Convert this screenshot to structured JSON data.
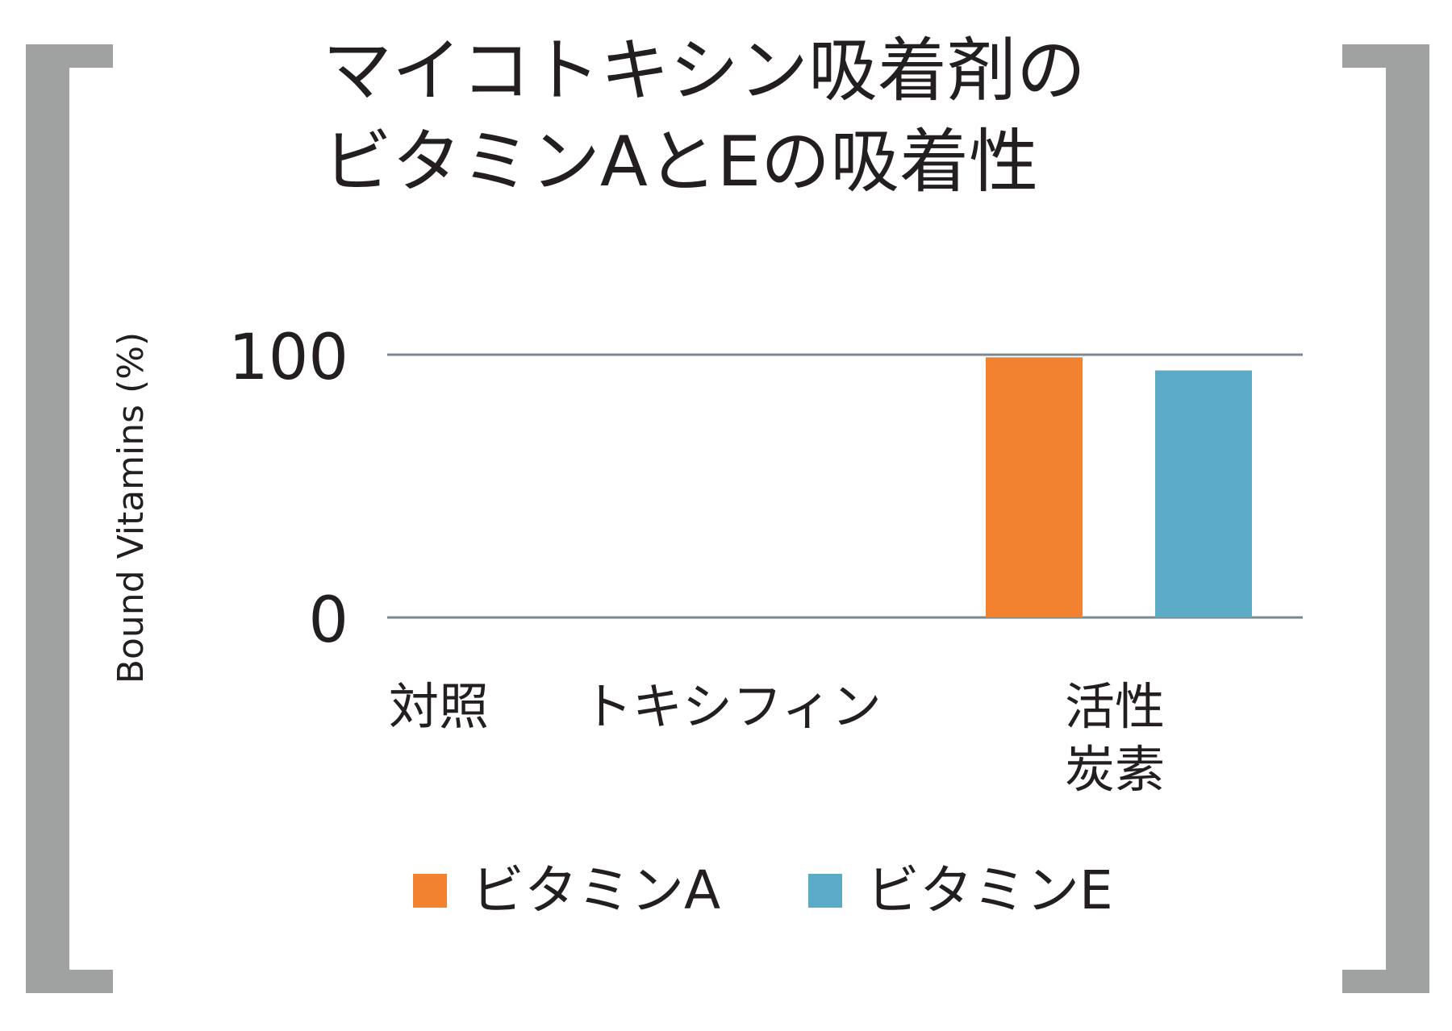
{
  "chart_data": {
    "type": "bar",
    "title_lines": [
      "マイコトキシン吸着剤の",
      "ビタミンAとEの吸着性"
    ],
    "ylabel": "Bound Vitamins (%)",
    "ylim": [
      0,
      100
    ],
    "yticks": [
      "0",
      "100"
    ],
    "grid": true,
    "legend_position": "bottom",
    "categories": [
      "対照",
      "トキシフィン",
      "活性\n炭素"
    ],
    "series": [
      {
        "name": "ビタミンA",
        "color": "#f38230",
        "values": [
          0,
          0,
          99
        ]
      },
      {
        "name": "ビタミンE",
        "color": "#5babc6",
        "values": [
          0,
          0,
          94
        ]
      }
    ]
  },
  "colors": {
    "bracket": "#a0a2a2",
    "gridline": "#7a8a8c",
    "text": "#231f20"
  }
}
